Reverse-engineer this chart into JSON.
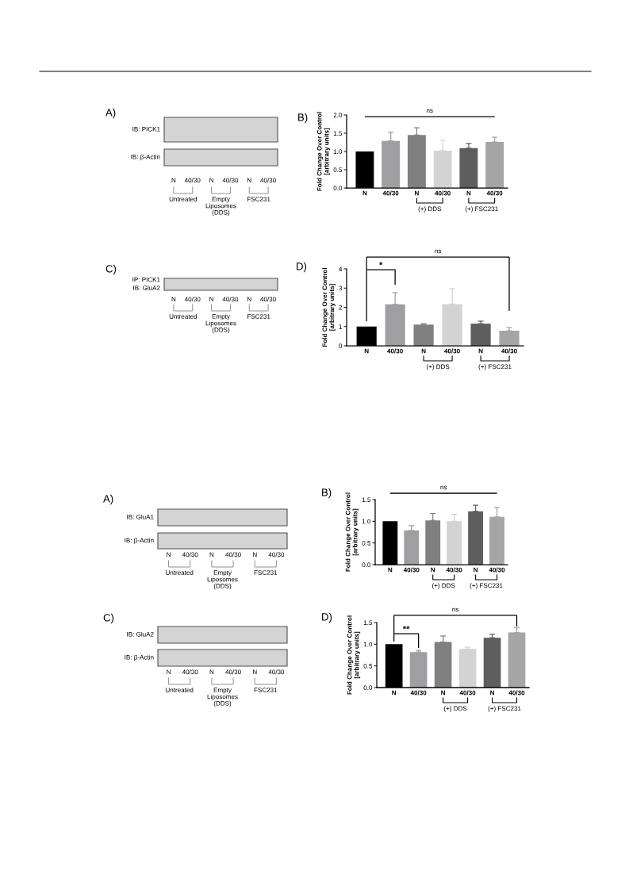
{
  "chart_data": [
    {
      "type": "other",
      "title": "A)",
      "y_categories": [
        "IB: PICK1",
        "IB: β-Actin"
      ],
      "categories": [
        "N",
        "40/30",
        "N",
        "40/30",
        "N",
        "40/30"
      ],
      "annotations": [
        "Untreated",
        "Empty\nLiposomes\n(DDS)",
        "FSC231"
      ]
    },
    {
      "type": "bar",
      "title": "B)",
      "ylabel": "Fold Change Over Control\n[arbitrary units]",
      "categories": [
        "N",
        "40/30",
        "N",
        "40/30",
        "N",
        "40/30"
      ],
      "values": [
        1.0,
        1.29,
        1.45,
        1.02,
        1.09,
        1.26
      ],
      "errors": [
        null,
        [
          1.29,
          1.53
        ],
        [
          1.45,
          1.65
        ],
        [
          1.02,
          1.31
        ],
        [
          1.09,
          1.22
        ],
        [
          1.26,
          1.39
        ]
      ],
      "colors": [
        "#000000",
        "#9f9fa2",
        "#808080",
        "#d3d3d3",
        "#5e5e5e",
        "#a5a5a5"
      ],
      "ylim": [
        0,
        2
      ],
      "yticks": [
        {
          "value": 0,
          "label": "0.0"
        },
        0.5,
        {
          "value": 1,
          "label": "1.0"
        },
        1.5,
        {
          "value": 2,
          "label": "2.0"
        }
      ],
      "annotations": [
        "ns",
        "(+) DDS",
        "(+) FSC231"
      ]
    },
    {
      "type": "other",
      "title": "C)",
      "y_categories": [
        "IP: PICK1\nIB: GluA2"
      ],
      "categories": [
        "N",
        "40/30",
        "N",
        "40/30",
        "N",
        "40/30"
      ],
      "annotations": [
        "Untreated",
        "Empty\nLiposomes\n(DDS)",
        "FSC231"
      ]
    },
    {
      "type": "bar",
      "title": "D)",
      "ylabel": "Fold Change Over Control\n[arbitrary units]",
      "categories": [
        "N",
        "40/30",
        "N",
        "40/30",
        "N",
        "40/30"
      ],
      "values": [
        1.0,
        2.15,
        1.1,
        2.17,
        1.15,
        0.78
      ],
      "errors": [
        null,
        [
          2.15,
          2.76
        ],
        [
          1.1,
          1.15
        ],
        [
          2.17,
          2.97
        ],
        [
          1.15,
          1.28
        ],
        [
          0.78,
          0.95
        ]
      ],
      "colors": [
        "#000000",
        "#9f9fa2",
        "#808080",
        "#d3d3d3",
        "#5e5e5e",
        "#a5a5a5"
      ],
      "ylim": [
        0,
        4
      ],
      "yticks": [
        0,
        1,
        2,
        3,
        4
      ],
      "annotations": [
        "ns",
        "*",
        "(+) DDS",
        "(+) FSC231"
      ]
    },
    {
      "type": "other",
      "title": "A)",
      "y_categories": [
        "IB: GluA1",
        "IB: β-Actin"
      ],
      "categories": [
        "N",
        "40/30",
        "N",
        "40/30",
        "N",
        "40/30"
      ],
      "annotations": [
        "Untreated",
        "Empty\nLiposomes\n(DDS)",
        "FSC231"
      ]
    },
    {
      "type": "bar",
      "title": "B)",
      "ylabel": "Fold Change Over Control\n[arbitrary units]",
      "categories": [
        "N",
        "40/30",
        "N",
        "40/30",
        "N",
        "40/30"
      ],
      "values": [
        1.0,
        0.79,
        1.02,
        1.0,
        1.23,
        1.1
      ],
      "errors": [
        null,
        [
          0.79,
          0.9
        ],
        [
          1.02,
          1.18
        ],
        [
          1.0,
          1.16
        ],
        [
          1.23,
          1.37
        ],
        [
          1.1,
          1.32
        ]
      ],
      "colors": [
        "#000000",
        "#9f9fa2",
        "#808080",
        "#d3d3d3",
        "#5e5e5e",
        "#a5a5a5"
      ],
      "ylim": [
        0,
        1.5
      ],
      "yticks": [
        {
          "value": 0,
          "label": "0.0"
        },
        0.5,
        {
          "value": 1,
          "label": "1.0"
        },
        1.5
      ],
      "annotations": [
        "ns",
        "(+) DDS",
        "(+) FSC231"
      ]
    },
    {
      "type": "other",
      "title": "C)",
      "y_categories": [
        "IB: GluA2",
        "IB: β-Actin"
      ],
      "categories": [
        "N",
        "40/30",
        "N",
        "40/30",
        "N",
        "40/30"
      ],
      "annotations": [
        "Untreated",
        "Empty\nLiposomes\n(DDS)",
        "FSC231"
      ]
    },
    {
      "type": "bar",
      "title": "D)",
      "ylabel": "Fold Change Over Control\n[arbitrary units]",
      "categories": [
        "N",
        "40/30",
        "N",
        "40/30",
        "N",
        "40/30"
      ],
      "values": [
        1.0,
        0.82,
        1.05,
        0.89,
        1.15,
        1.27
      ],
      "errors": [
        null,
        [
          0.82,
          0.86
        ],
        [
          1.05,
          1.19
        ],
        [
          0.89,
          0.93
        ],
        [
          1.15,
          1.23
        ],
        [
          1.27,
          1.38
        ]
      ],
      "colors": [
        "#000000",
        "#9f9fa2",
        "#808080",
        "#d3d3d3",
        "#5e5e5e",
        "#a5a5a5"
      ],
      "ylim": [
        0,
        1.5
      ],
      "yticks": [
        {
          "value": 0,
          "label": "0.0"
        },
        0.5,
        {
          "value": 1,
          "label": "1.0"
        },
        1.5
      ],
      "annotations": [
        "ns",
        "**",
        "(+) DDS",
        "(+) FSC231"
      ]
    }
  ]
}
